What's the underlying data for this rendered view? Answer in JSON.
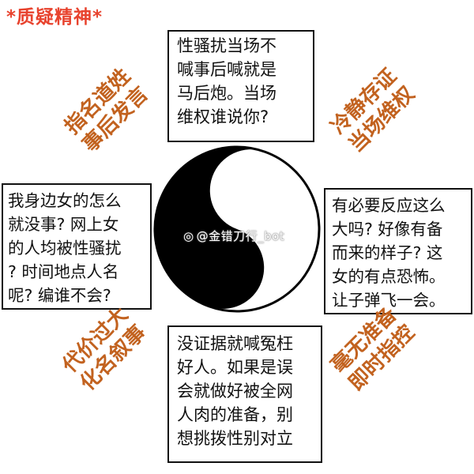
{
  "title": "*质疑精神*",
  "boxes": {
    "top": "性骚扰当场不\n喊事后喊就是\n马后炮。当场\n维权谁说你?",
    "left": "我身边女的怎么\n就没事? 网上女\n的人均被性骚扰\n? 时间地点人名\n呢? 编谁不会?",
    "right": "有必要反应这么\n大吗? 好像有备\n而来的样子? 这\n女的有点恐怖。\n让子弹飞一会。",
    "bottom": "没证据就喊冤枉\n好人。如果是误\n会就做好被全网\n人肉的准备，别\n想挑拨性别对立"
  },
  "diagonals": {
    "top_left": "指名道姓\n事后发言",
    "top_right": "冷静存证\n当场维权",
    "bottom_left": "代价过大\n化名叙事",
    "bottom_right": "毫无准备\n即时指控"
  },
  "watermark": "@金错刀行_bot",
  "colors": {
    "title": "#e8432e",
    "diagonal_text": "#c2621f"
  }
}
